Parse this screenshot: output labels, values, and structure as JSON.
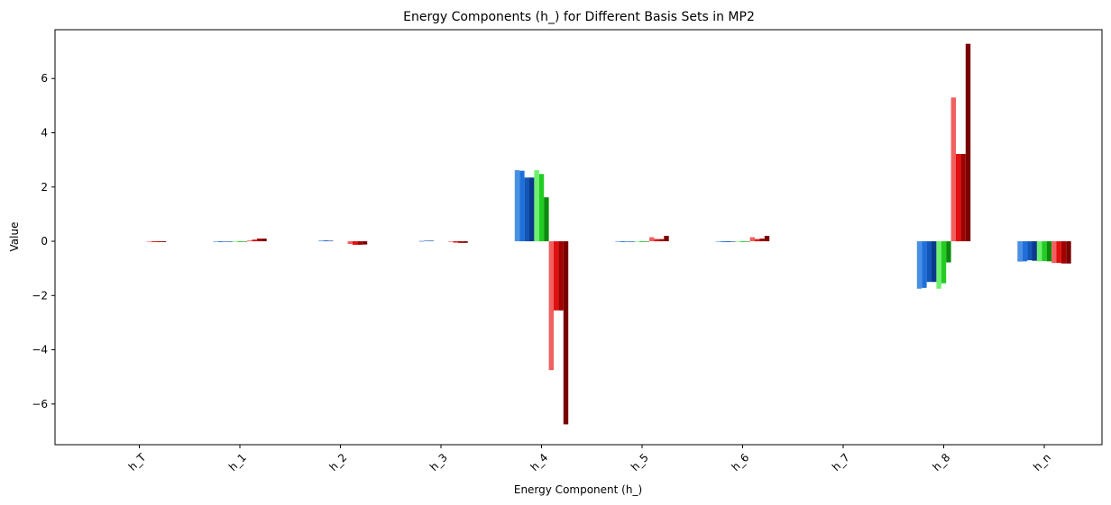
{
  "chart_data": {
    "type": "bar",
    "title": "Energy Components (h_) for Different Basis Sets in MP2",
    "xlabel": "Energy Component (h_)",
    "ylabel": "Value",
    "categories": [
      "h_T",
      "h_1",
      "h_2",
      "h_3",
      "h_4",
      "h_5",
      "h_6",
      "h_7",
      "h_8",
      "h_n"
    ],
    "ylim": [
      -7.5,
      7.8
    ],
    "yticks": [
      -6,
      -4,
      -2,
      0,
      2,
      4,
      6
    ],
    "ytick_labels": [
      "−6",
      "−4",
      "−2",
      "0",
      "2",
      "4",
      "6"
    ],
    "grid": false,
    "legend": "none",
    "xtick_rotation": 45,
    "series": [
      {
        "color": "#4a90e2",
        "values": [
          0.0,
          -0.02,
          0.0,
          0.0,
          2.62,
          -0.02,
          -0.02,
          0.0,
          -1.75,
          -0.75
        ]
      },
      {
        "color": "#1f6fdb",
        "values": [
          0.0,
          -0.03,
          0.02,
          0.01,
          2.6,
          -0.03,
          -0.03,
          0.0,
          -1.72,
          -0.74
        ]
      },
      {
        "color": "#1456b8",
        "values": [
          0.0,
          -0.02,
          0.03,
          0.02,
          2.35,
          -0.02,
          -0.03,
          0.0,
          -1.5,
          -0.7
        ]
      },
      {
        "color": "#0b3a8c",
        "values": [
          0.0,
          -0.02,
          0.02,
          0.02,
          2.35,
          -0.02,
          -0.02,
          0.0,
          -1.5,
          -0.72
        ]
      },
      {
        "color": "#6ef06e",
        "values": [
          0.0,
          -0.02,
          0.0,
          0.0,
          2.62,
          -0.02,
          -0.02,
          0.0,
          -1.75,
          -0.74
        ]
      },
      {
        "color": "#22cc22",
        "values": [
          0.0,
          -0.03,
          0.0,
          0.0,
          2.48,
          -0.03,
          -0.03,
          0.0,
          -1.55,
          -0.73
        ]
      },
      {
        "color": "#0a8a0a",
        "values": [
          0.0,
          -0.02,
          0.0,
          0.0,
          1.62,
          -0.02,
          -0.02,
          0.0,
          -0.78,
          -0.74
        ]
      },
      {
        "color": "#f06060",
        "values": [
          -0.02,
          0.03,
          -0.1,
          -0.02,
          -4.75,
          0.15,
          0.15,
          0.0,
          5.3,
          -0.8
        ]
      },
      {
        "color": "#e01010",
        "values": [
          -0.03,
          0.06,
          -0.13,
          -0.05,
          -2.55,
          0.08,
          0.08,
          0.0,
          3.22,
          -0.8
        ]
      },
      {
        "color": "#a00000",
        "values": [
          -0.03,
          0.1,
          -0.13,
          -0.06,
          -2.55,
          0.08,
          0.1,
          0.0,
          3.22,
          -0.82
        ]
      },
      {
        "color": "#7a0000",
        "values": [
          -0.03,
          0.1,
          -0.12,
          -0.06,
          -6.75,
          0.2,
          0.2,
          0.0,
          7.28,
          -0.82
        ]
      }
    ]
  }
}
